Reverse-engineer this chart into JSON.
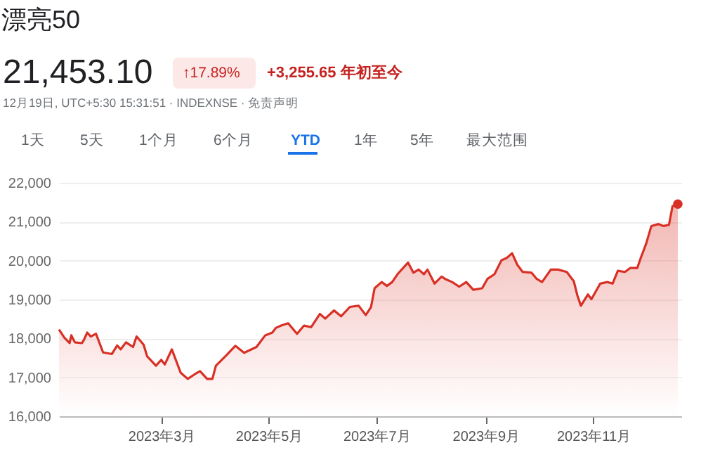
{
  "chart_data": {
    "type": "area",
    "title": "漂亮50",
    "annotations": [
      "21,453.10",
      "↑17.89%",
      "+3,255.65 年初至今",
      "12月19日, UTC+5:30 15:31:51 · INDEXNSE · 免责声明",
      "1天",
      "5天",
      "1个月",
      "6个月",
      "YTD",
      "1年",
      "5年",
      "最大范围"
    ],
    "x": [
      "2023-01-02",
      "2023-01-05",
      "2023-01-08",
      "2023-01-09",
      "2023-01-11",
      "2023-01-15",
      "2023-01-16",
      "2023-01-18",
      "2023-01-20",
      "2023-01-23",
      "2023-01-27",
      "2023-02-01",
      "2023-02-04",
      "2023-02-06",
      "2023-02-09",
      "2023-02-13",
      "2023-02-15",
      "2023-02-19",
      "2023-02-21",
      "2023-02-26",
      "2023-03-01",
      "2023-03-03",
      "2023-03-07",
      "2023-03-12",
      "2023-03-16",
      "2023-03-20",
      "2023-03-23",
      "2023-03-27",
      "2023-03-30",
      "2023-04-01",
      "2023-04-07",
      "2023-04-12",
      "2023-04-17",
      "2023-04-24",
      "2023-04-29",
      "2023-05-03",
      "2023-05-05",
      "2023-05-08",
      "2023-05-12",
      "2023-05-17",
      "2023-05-21",
      "2023-05-25",
      "2023-05-30",
      "2023-06-02",
      "2023-06-07",
      "2023-06-11",
      "2023-06-16",
      "2023-06-21",
      "2023-06-25",
      "2023-06-28",
      "2023-06-30",
      "2023-07-04",
      "2023-07-07",
      "2023-07-10",
      "2023-07-13",
      "2023-07-19",
      "2023-07-22",
      "2023-07-25",
      "2023-07-28",
      "2023-07-30",
      "2023-08-03",
      "2023-08-07",
      "2023-08-09",
      "2023-08-13",
      "2023-08-17",
      "2023-08-21",
      "2023-08-25",
      "2023-08-30",
      "2023-09-02",
      "2023-09-06",
      "2023-09-10",
      "2023-09-13",
      "2023-09-16",
      "2023-09-19",
      "2023-09-22",
      "2023-09-27",
      "2023-09-30",
      "2023-10-03",
      "2023-10-08",
      "2023-10-12",
      "2023-10-17",
      "2023-10-21",
      "2023-10-23",
      "2023-10-25",
      "2023-10-29",
      "2023-10-31",
      "2023-11-05",
      "2023-11-09",
      "2023-11-12",
      "2023-11-15",
      "2023-11-19",
      "2023-11-22",
      "2023-11-26",
      "2023-11-28",
      "2023-12-01",
      "2023-12-04",
      "2023-12-08",
      "2023-12-11",
      "2023-12-14",
      "2023-12-16",
      "2023-12-19"
    ],
    "series": [
      {
        "color": "#d93025",
        "values": [
          18230,
          18020,
          17880,
          18080,
          17900,
          17880,
          17950,
          18150,
          18050,
          18120,
          17640,
          17600,
          17820,
          17720,
          17900,
          17780,
          18050,
          17840,
          17540,
          17300,
          17450,
          17330,
          17720,
          17120,
          16960,
          17080,
          17160,
          16960,
          16960,
          17300,
          17570,
          17810,
          17630,
          17780,
          18080,
          18150,
          18270,
          18330,
          18390,
          18120,
          18330,
          18290,
          18630,
          18510,
          18720,
          18570,
          18810,
          18840,
          18600,
          18810,
          19290,
          19450,
          19350,
          19450,
          19650,
          19950,
          19690,
          19770,
          19650,
          19770,
          19410,
          19590,
          19530,
          19450,
          19330,
          19450,
          19250,
          19290,
          19530,
          19650,
          20010,
          20070,
          20190,
          19890,
          19710,
          19690,
          19530,
          19450,
          19770,
          19770,
          19710,
          19470,
          19110,
          18840,
          19130,
          19010,
          19410,
          19450,
          19410,
          19740,
          19710,
          19810,
          19810,
          20070,
          20430,
          20890,
          20940,
          20890,
          20920,
          21400,
          21453.1
        ]
      },
      {
        "type": "scatter",
        "color": "#d93025",
        "x": [
          "2023-12-19"
        ],
        "values": [
          21453.1
        ]
      }
    ],
    "xlim": [
      "2023-01-02",
      "2023-12-21"
    ],
    "xticks": [
      {
        "value": "2023-03-01",
        "label": "2023年3月"
      },
      {
        "value": "2023-05-01",
        "label": "2023年5月"
      },
      {
        "value": "2023-07-01",
        "label": "2023年7月"
      },
      {
        "value": "2023-09-01",
        "label": "2023年9月"
      },
      {
        "value": "2023-11-01",
        "label": "2023年11月"
      }
    ],
    "ylim": [
      16000,
      22000
    ],
    "yticks": [
      {
        "value": 16000,
        "label": "16,000"
      },
      {
        "value": 17000,
        "label": "17,000"
      },
      {
        "value": 18000,
        "label": "18,000"
      },
      {
        "value": 19000,
        "label": "19,000"
      },
      {
        "value": 20000,
        "label": "20,000"
      },
      {
        "value": 21000,
        "label": "21,000"
      },
      {
        "value": 22000,
        "label": "22,000"
      }
    ],
    "grid": "y"
  }
}
